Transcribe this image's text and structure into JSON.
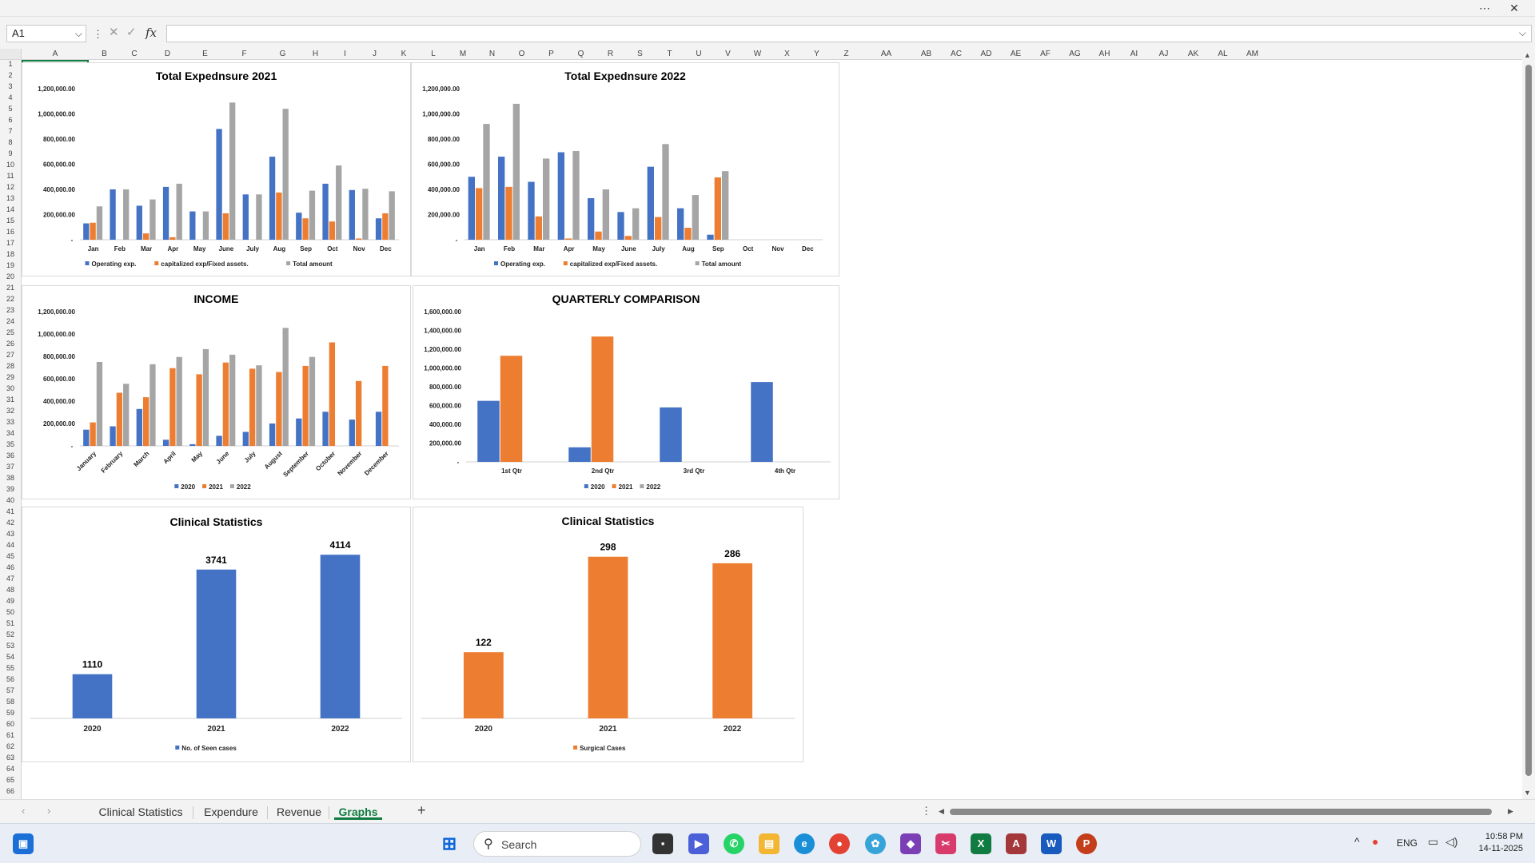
{
  "window": {
    "more_icon": "more-horizontal-icon",
    "close_icon": "close-icon"
  },
  "formula_bar": {
    "name_box": "A1",
    "formula": "",
    "fx_label": "fx"
  },
  "columns": [
    "A",
    "B",
    "C",
    "D",
    "E",
    "F",
    "G",
    "H",
    "I",
    "J",
    "K",
    "L",
    "M",
    "N",
    "O",
    "P",
    "Q",
    "R",
    "S",
    "T",
    "U",
    "V",
    "W",
    "X",
    "Y",
    "Z",
    "AA",
    "AB",
    "AC",
    "AD",
    "AE",
    "AF",
    "AG",
    "AH",
    "AI",
    "AJ",
    "AK",
    "AL",
    "AM"
  ],
  "rows_count": 66,
  "charts": {
    "exp2021": {
      "title": "Total Expednsure 2021",
      "categories": [
        "Jan",
        "Feb",
        "Mar",
        "Apr",
        "May",
        "June",
        "July",
        "Aug",
        "Sep",
        "Oct",
        "Nov",
        "Dec"
      ],
      "y_ticks": [
        "-",
        "200,000.00",
        "400,000.00",
        "600,000.00",
        "800,000.00",
        "1,000,000.00",
        "1,200,000.00"
      ],
      "legend": [
        "Operating exp.",
        "capitalized exp/Fixed assets.",
        "Total amount"
      ]
    },
    "exp2022": {
      "title": "Total Expednsure 2022",
      "categories": [
        "Jan",
        "Feb",
        "Mar",
        "Apr",
        "May",
        "June",
        "July",
        "Aug",
        "Sep",
        "Oct",
        "Nov",
        "Dec"
      ],
      "y_ticks": [
        "-",
        "200,000.00",
        "400,000.00",
        "600,000.00",
        "800,000.00",
        "1,000,000.00",
        "1,200,000.00"
      ],
      "legend": [
        "Operating exp.",
        "capitalized exp/Fixed assets.",
        "Total amount"
      ]
    },
    "income": {
      "title": "INCOME",
      "categories": [
        "January",
        "February",
        "March",
        "April",
        "May",
        "June",
        "July",
        "August",
        "September",
        "October",
        "November",
        "December"
      ],
      "y_ticks": [
        "-",
        "200,000.00",
        "400,000.00",
        "600,000.00",
        "800,000.00",
        "1,000,000.00",
        "1,200,000.00"
      ],
      "legend": [
        "2020",
        "2021",
        "2022"
      ]
    },
    "quarterly": {
      "title": "QUARTERLY COMPARISON",
      "categories": [
        "1st Qtr",
        "2nd Qtr",
        "3rd Qtr",
        "4th Qtr"
      ],
      "y_ticks": [
        "-",
        "200,000.00",
        "400,000.00",
        "600,000.00",
        "800,000.00",
        "1,000,000.00",
        "1,200,000.00",
        "1,400,000.00",
        "1,600,000.00"
      ],
      "legend": [
        "2020",
        "2021",
        "2022"
      ]
    },
    "clinical_seen": {
      "title": "Clinical Statistics",
      "categories": [
        "2020",
        "2021",
        "2022"
      ],
      "data_labels": [
        "1110",
        "3741",
        "4114"
      ],
      "legend": [
        "No. of Seen cases"
      ]
    },
    "clinical_surgical": {
      "title": "Clinical Statistics",
      "categories": [
        "2020",
        "2021",
        "2022"
      ],
      "data_labels": [
        "122",
        "298",
        "286"
      ],
      "legend": [
        "Surgical Cases"
      ]
    }
  },
  "chart_data": [
    {
      "type": "bar",
      "id": "exp2021",
      "title": "Total Expednsure 2021",
      "categories": [
        "Jan",
        "Feb",
        "Mar",
        "Apr",
        "May",
        "June",
        "July",
        "Aug",
        "Sep",
        "Oct",
        "Nov",
        "Dec"
      ],
      "ylim": [
        0,
        1200000
      ],
      "legend_position": "bottom",
      "grid": false,
      "series": [
        {
          "name": "Operating exp.",
          "color": "#4472c4",
          "values": [
            130000,
            400000,
            270000,
            420000,
            225000,
            880000,
            360000,
            660000,
            215000,
            445000,
            395000,
            170000
          ]
        },
        {
          "name": "capitalized exp/Fixed assets.",
          "color": "#ed7d31",
          "values": [
            135000,
            0,
            50000,
            20000,
            0,
            210000,
            0,
            375000,
            170000,
            145000,
            10000,
            210000
          ]
        },
        {
          "name": "Total amount",
          "color": "#a5a5a5",
          "values": [
            265000,
            400000,
            320000,
            445000,
            225000,
            1090000,
            360000,
            1040000,
            390000,
            590000,
            405000,
            385000
          ]
        }
      ]
    },
    {
      "type": "bar",
      "id": "exp2022",
      "title": "Total Expednsure 2022",
      "categories": [
        "Jan",
        "Feb",
        "Mar",
        "Apr",
        "May",
        "June",
        "July",
        "Aug",
        "Sep",
        "Oct",
        "Nov",
        "Dec"
      ],
      "ylim": [
        0,
        1200000
      ],
      "legend_position": "bottom",
      "grid": false,
      "series": [
        {
          "name": "Operating exp.",
          "color": "#4472c4",
          "values": [
            500000,
            660000,
            460000,
            695000,
            330000,
            220000,
            580000,
            250000,
            40000,
            0,
            0,
            0
          ]
        },
        {
          "name": "capitalized exp/Fixed assets.",
          "color": "#ed7d31",
          "values": [
            410000,
            420000,
            185000,
            10000,
            65000,
            30000,
            180000,
            95000,
            495000,
            0,
            0,
            0
          ]
        },
        {
          "name": "Total amount",
          "color": "#a5a5a5",
          "values": [
            920000,
            1080000,
            645000,
            705000,
            400000,
            250000,
            760000,
            355000,
            545000,
            0,
            0,
            0
          ]
        }
      ]
    },
    {
      "type": "bar",
      "id": "income",
      "title": "INCOME",
      "categories": [
        "January",
        "February",
        "March",
        "April",
        "May",
        "June",
        "July",
        "August",
        "September",
        "October",
        "November",
        "December"
      ],
      "ylim": [
        0,
        1200000
      ],
      "legend_position": "bottom",
      "grid": false,
      "series": [
        {
          "name": "2020",
          "color": "#4472c4",
          "values": [
            145000,
            175000,
            330000,
            55000,
            15000,
            90000,
            125000,
            200000,
            245000,
            305000,
            235000,
            305000
          ]
        },
        {
          "name": "2021",
          "color": "#ed7d31",
          "values": [
            210000,
            475000,
            435000,
            695000,
            640000,
            745000,
            690000,
            660000,
            715000,
            925000,
            580000,
            715000
          ]
        },
        {
          "name": "2022",
          "color": "#a5a5a5",
          "values": [
            750000,
            555000,
            730000,
            795000,
            865000,
            815000,
            720000,
            1055000,
            795000,
            0,
            0,
            0
          ]
        }
      ]
    },
    {
      "type": "bar",
      "id": "quarterly",
      "title": "QUARTERLY COMPARISON",
      "categories": [
        "1st Qtr",
        "2nd Qtr",
        "3rd Qtr",
        "4th Qtr"
      ],
      "ylim": [
        0,
        1600000
      ],
      "legend_position": "bottom",
      "grid": false,
      "series": [
        {
          "name": "2020",
          "color": "#4472c4",
          "values": [
            650000,
            155000,
            580000,
            850000
          ]
        },
        {
          "name": "2021",
          "color": "#ed7d31",
          "values": [
            1130000,
            1335000,
            0,
            0
          ]
        },
        {
          "name": "2022",
          "color": "#a5a5a5",
          "values": [
            0,
            0,
            0,
            0
          ]
        }
      ]
    },
    {
      "type": "bar",
      "id": "clinical_seen",
      "title": "Clinical Statistics",
      "categories": [
        "2020",
        "2021",
        "2022"
      ],
      "ylim": [
        0,
        4500
      ],
      "legend_position": "bottom",
      "grid": false,
      "series": [
        {
          "name": "No. of Seen cases",
          "color": "#4472c4",
          "values": [
            1110,
            3741,
            4114
          ]
        }
      ]
    },
    {
      "type": "bar",
      "id": "clinical_surgical",
      "title": "Clinical Statistics",
      "categories": [
        "2020",
        "2021",
        "2022"
      ],
      "ylim": [
        0,
        330
      ],
      "legend_position": "bottom",
      "grid": false,
      "series": [
        {
          "name": "Surgical Cases",
          "color": "#ed7d31",
          "values": [
            122,
            298,
            286
          ]
        }
      ]
    }
  ],
  "sheet_tabs": [
    {
      "label": "Clinical Statistics",
      "active": false
    },
    {
      "label": "Expendure",
      "active": false
    },
    {
      "label": "Revenue",
      "active": false
    },
    {
      "label": "Graphs",
      "active": true
    }
  ],
  "taskbar": {
    "search_label": "Search",
    "language": "ENG",
    "time": "10:58 PM",
    "date": "14-11-2025",
    "apps": [
      "widgets-icon",
      "windows-start-icon",
      "file-explorer-task-icon",
      "zoom-icon",
      "whatsapp-icon",
      "folder-icon",
      "edge-icon",
      "chrome-icon",
      "photos-icon",
      "visual-studio-icon",
      "snipping-tool-icon",
      "excel-icon",
      "access-icon",
      "word-icon",
      "powerpoint-icon"
    ]
  }
}
